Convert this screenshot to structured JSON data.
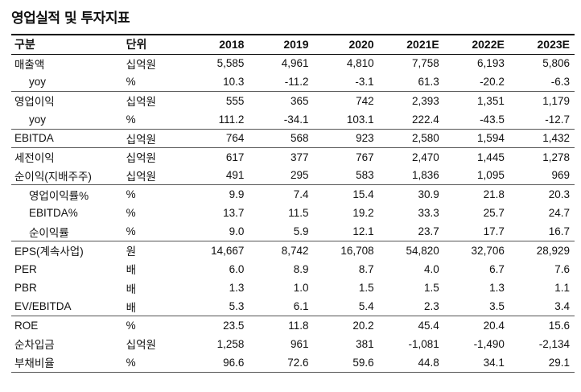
{
  "title": "영업실적 및 투자지표",
  "header": [
    "구분",
    "단위",
    "2018",
    "2019",
    "2020",
    "2021E",
    "2022E",
    "2023E"
  ],
  "rows": [
    {
      "label": "매출액",
      "unit": "십억원",
      "values": [
        "5,585",
        "4,961",
        "4,810",
        "7,758",
        "6,193",
        "5,806"
      ]
    },
    {
      "label": "yoy",
      "unit": "%",
      "values": [
        "10.3",
        "-11.2",
        "-3.1",
        "61.3",
        "-20.2",
        "-6.3"
      ]
    },
    {
      "label": "영업이익",
      "unit": "십억원",
      "values": [
        "555",
        "365",
        "742",
        "2,393",
        "1,351",
        "1,179"
      ]
    },
    {
      "label": "yoy",
      "unit": "%",
      "values": [
        "111.2",
        "-34.1",
        "103.1",
        "222.4",
        "-43.5",
        "-12.7"
      ]
    },
    {
      "label": "EBITDA",
      "unit": "십억원",
      "values": [
        "764",
        "568",
        "923",
        "2,580",
        "1,594",
        "1,432"
      ]
    },
    {
      "label": "세전이익",
      "unit": "십억원",
      "values": [
        "617",
        "377",
        "767",
        "2,470",
        "1,445",
        "1,278"
      ]
    },
    {
      "label": "순이익(지배주주)",
      "unit": "십억원",
      "values": [
        "491",
        "295",
        "583",
        "1,836",
        "1,095",
        "969"
      ]
    },
    {
      "label": "영업이익률%",
      "unit": "%",
      "values": [
        "9.9",
        "7.4",
        "15.4",
        "30.9",
        "21.8",
        "20.3"
      ]
    },
    {
      "label": "EBITDA%",
      "unit": "%",
      "values": [
        "13.7",
        "11.5",
        "19.2",
        "33.3",
        "25.7",
        "24.7"
      ]
    },
    {
      "label": "순이익률",
      "unit": "%",
      "values": [
        "9.0",
        "5.9",
        "12.1",
        "23.7",
        "17.7",
        "16.7"
      ]
    },
    {
      "label": "EPS(계속사업)",
      "unit": "원",
      "values": [
        "14,667",
        "8,742",
        "16,708",
        "54,820",
        "32,706",
        "28,929"
      ]
    },
    {
      "label": "PER",
      "unit": "배",
      "values": [
        "6.0",
        "8.9",
        "8.7",
        "4.0",
        "6.7",
        "7.6"
      ]
    },
    {
      "label": "PBR",
      "unit": "배",
      "values": [
        "1.3",
        "1.0",
        "1.5",
        "1.5",
        "1.3",
        "1.1"
      ]
    },
    {
      "label": "EV/EBITDA",
      "unit": "배",
      "values": [
        "5.3",
        "6.1",
        "5.4",
        "2.3",
        "3.5",
        "3.4"
      ]
    },
    {
      "label": "ROE",
      "unit": "%",
      "values": [
        "23.5",
        "11.8",
        "20.2",
        "45.4",
        "20.4",
        "15.6"
      ]
    },
    {
      "label": "순차입금",
      "unit": "십억원",
      "values": [
        "1,258",
        "961",
        "381",
        "-1,081",
        "-1,490",
        "-2,134"
      ]
    },
    {
      "label": "부채비율",
      "unit": "%",
      "values": [
        "96.6",
        "72.6",
        "59.6",
        "44.8",
        "34.1",
        "29.1"
      ]
    }
  ]
}
